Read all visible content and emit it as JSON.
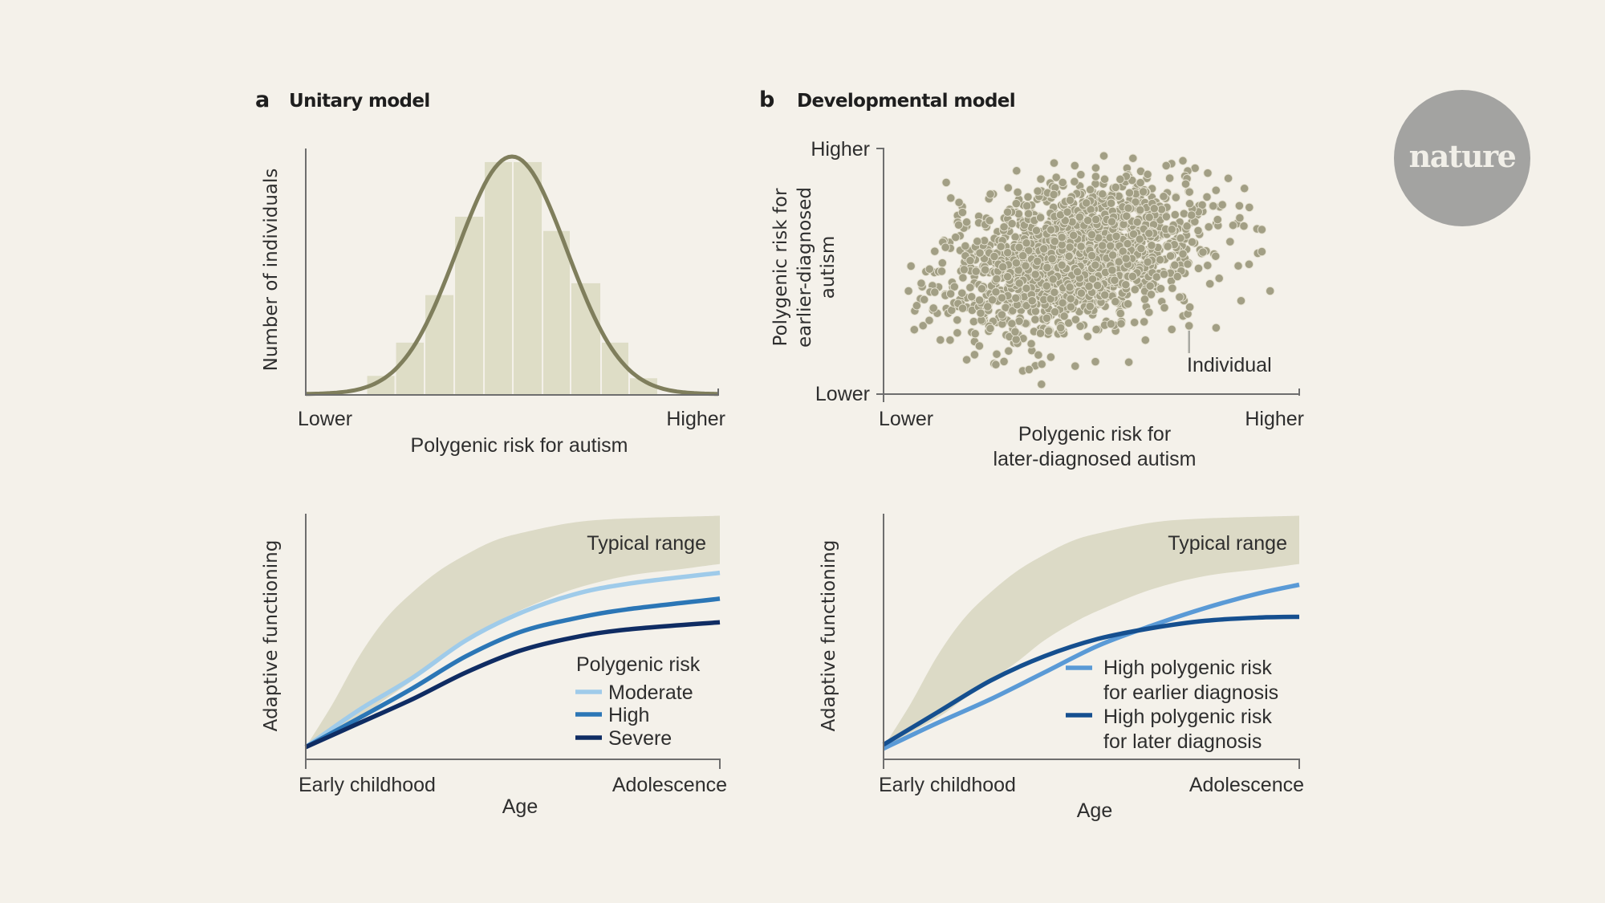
{
  "logo": {
    "text": "nature"
  },
  "colors": {
    "background": "#f4f1ea",
    "bar_fill": "#deddc6",
    "density_curve": "#7f7e5c",
    "band_fill": "#dcdac6",
    "dot_fill": "#a29f85",
    "dot_stroke": "#e6e2d2",
    "moderate": "#9fcbea",
    "high": "#2b76b6",
    "severe": "#0f2c63",
    "earlier": "#5a9ad6",
    "later": "#154f8f"
  },
  "panels": {
    "a": {
      "letter": "a",
      "title": "Unitary model"
    },
    "b": {
      "letter": "b",
      "title": "Developmental model"
    }
  },
  "chart_data": [
    {
      "id": "a-top",
      "type": "bar",
      "title": "",
      "xlabel": "Polygenic risk for autism",
      "ylabel": "Number of individuals",
      "x_tick_labels": [
        "Lower",
        "Higher"
      ],
      "xlim": [
        0,
        1
      ],
      "ylim": [
        0,
        100
      ],
      "bins": [
        {
          "x0": 0.147,
          "x1": 0.217,
          "value": 8
        },
        {
          "x0": 0.217,
          "x1": 0.288,
          "value": 22
        },
        {
          "x0": 0.288,
          "x1": 0.36,
          "value": 42
        },
        {
          "x0": 0.36,
          "x1": 0.432,
          "value": 75
        },
        {
          "x0": 0.432,
          "x1": 0.502,
          "value": 98
        },
        {
          "x0": 0.502,
          "x1": 0.574,
          "value": 98
        },
        {
          "x0": 0.574,
          "x1": 0.642,
          "value": 69
        },
        {
          "x0": 0.642,
          "x1": 0.716,
          "value": 47
        },
        {
          "x0": 0.716,
          "x1": 0.784,
          "value": 22
        },
        {
          "x0": 0.784,
          "x1": 0.854,
          "value": 7
        }
      ],
      "density_curve": {
        "shape": "normal",
        "mean": 0.5,
        "sd": 0.133,
        "peak": 100
      },
      "grid": false
    },
    {
      "id": "b-top",
      "type": "scatter",
      "xlabel": "Polygenic risk for later-diagnosed autism",
      "ylabel": "Polygenic risk for earlier-diagnosed autism",
      "ylabel_lines": [
        "Polygenic risk for",
        "earlier-diagnosed",
        "autism"
      ],
      "xlabel_lines": [
        "Polygenic risk for",
        "later-diagnosed autism"
      ],
      "x_tick_labels": [
        "Lower",
        "Higher"
      ],
      "y_tick_labels": [
        "Lower",
        "Higher"
      ],
      "xlim": [
        0,
        1
      ],
      "ylim": [
        0,
        1
      ],
      "cloud": {
        "n": 1700,
        "mean_x": 0.46,
        "mean_y": 0.56,
        "sd_x": 0.15,
        "sd_y": 0.15,
        "correlation": 0.35,
        "seed": 7
      },
      "outliers": [
        [
          0.06,
          0.42
        ],
        [
          0.08,
          0.36
        ],
        [
          0.12,
          0.35
        ],
        [
          0.11,
          0.3
        ],
        [
          0.16,
          0.22
        ],
        [
          0.2,
          0.14
        ],
        [
          0.27,
          0.12
        ],
        [
          0.35,
          0.1
        ],
        [
          0.38,
          0.04
        ],
        [
          0.63,
          0.22
        ],
        [
          0.59,
          0.13
        ],
        [
          0.86,
          0.38
        ],
        [
          0.8,
          0.27
        ],
        [
          0.93,
          0.42
        ],
        [
          0.91,
          0.58
        ],
        [
          0.72,
          0.95
        ],
        [
          0.6,
          0.96
        ],
        [
          0.53,
          0.97
        ],
        [
          0.46,
          0.93
        ],
        [
          0.68,
          0.93
        ],
        [
          0.78,
          0.9
        ],
        [
          0.19,
          0.74
        ],
        [
          0.2,
          0.7
        ],
        [
          0.14,
          0.5
        ],
        [
          0.88,
          0.76
        ],
        [
          0.91,
          0.67
        ]
      ],
      "annotation": {
        "label": "Individual",
        "point": [
          0.735,
          0.278
        ]
      },
      "grid": false
    },
    {
      "id": "a-bottom",
      "type": "line",
      "xlabel": "Age",
      "ylabel": "Adaptive functioning",
      "x_tick_labels": [
        "Early childhood",
        "Adolescence"
      ],
      "xlim": [
        0,
        1
      ],
      "ylim": [
        0,
        1
      ],
      "band": {
        "label": "Typical range",
        "x": [
          0,
          0.064,
          0.129,
          0.193,
          0.258,
          0.322,
          0.387,
          0.451,
          0.516,
          0.645,
          0.774,
          1.0
        ],
        "upper": [
          0.05,
          0.224,
          0.421,
          0.574,
          0.683,
          0.77,
          0.836,
          0.89,
          0.923,
          0.967,
          0.984,
          0.995
        ],
        "lower_x": [
          0,
          0.129,
          0.193,
          0.258,
          0.322,
          0.387,
          0.451,
          0.516,
          0.645,
          0.774,
          0.903,
          1.0
        ],
        "lower": [
          0.05,
          0.169,
          0.246,
          0.322,
          0.399,
          0.486,
          0.552,
          0.607,
          0.694,
          0.749,
          0.776,
          0.798
        ]
      },
      "legend_title": "Polygenic risk",
      "legend_position": "bottom-right",
      "x": [
        0,
        0.129,
        0.258,
        0.387,
        0.516,
        0.645,
        0.774,
        1.0
      ],
      "series": [
        {
          "name": "Moderate",
          "color_key": "moderate",
          "values": [
            0.05,
            0.202,
            0.333,
            0.486,
            0.596,
            0.672,
            0.716,
            0.762
          ]
        },
        {
          "name": "High",
          "color_key": "high",
          "values": [
            0.05,
            0.169,
            0.29,
            0.421,
            0.519,
            0.574,
            0.612,
            0.656
          ]
        },
        {
          "name": "Severe",
          "color_key": "severe",
          "values": [
            0.05,
            0.148,
            0.246,
            0.355,
            0.443,
            0.497,
            0.53,
            0.56
          ]
        }
      ],
      "grid": false
    },
    {
      "id": "b-bottom",
      "type": "line",
      "xlabel": "Age",
      "ylabel": "Adaptive functioning",
      "x_tick_labels": [
        "Early childhood",
        "Adolescence"
      ],
      "xlim": [
        0,
        1
      ],
      "ylim": [
        0,
        1
      ],
      "band": {
        "label": "Typical range",
        "x": [
          0,
          0.064,
          0.129,
          0.193,
          0.258,
          0.322,
          0.387,
          0.451,
          0.516,
          0.645,
          0.774,
          1.0
        ],
        "upper": [
          0.05,
          0.224,
          0.421,
          0.574,
          0.683,
          0.77,
          0.836,
          0.89,
          0.923,
          0.967,
          0.984,
          0.995
        ],
        "lower_x": [
          0,
          0.129,
          0.193,
          0.258,
          0.322,
          0.387,
          0.451,
          0.516,
          0.645,
          0.774,
          0.903,
          1.0
        ],
        "lower": [
          0.05,
          0.169,
          0.246,
          0.322,
          0.399,
          0.486,
          0.552,
          0.607,
          0.694,
          0.749,
          0.776,
          0.798
        ]
      },
      "legend_position": "bottom-right",
      "x": [
        0,
        0.129,
        0.258,
        0.387,
        0.516,
        0.645,
        0.774,
        0.903,
        1.0
      ],
      "series": [
        {
          "name": "High polygenic risk for earlier diagnosis",
          "lines": [
            "High polygenic risk",
            "for earlier diagnosis"
          ],
          "color_key": "earlier",
          "values": [
            0.044,
            0.148,
            0.246,
            0.355,
            0.464,
            0.546,
            0.618,
            0.678,
            0.713
          ]
        },
        {
          "name": "High polygenic risk for later diagnosis",
          "lines": [
            "High polygenic risk",
            "for later diagnosis"
          ],
          "color_key": "later",
          "values": [
            0.06,
            0.191,
            0.322,
            0.421,
            0.492,
            0.536,
            0.566,
            0.579,
            0.582
          ]
        }
      ],
      "grid": false
    }
  ]
}
